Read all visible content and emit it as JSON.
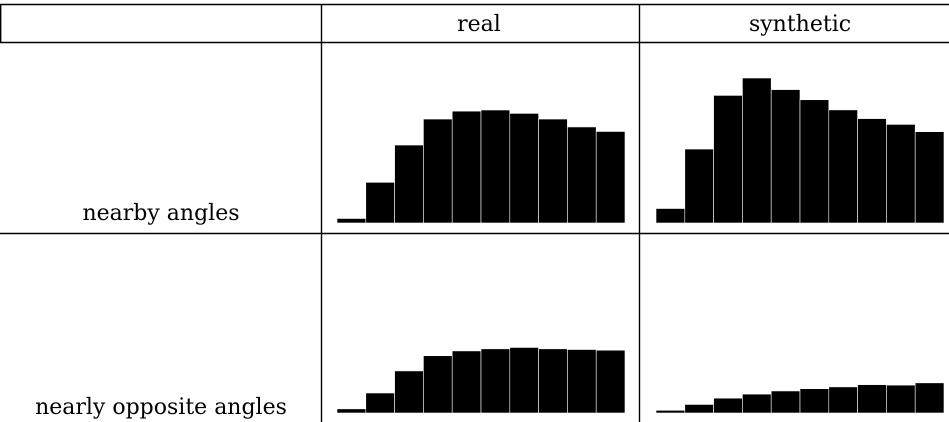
{
  "table": {
    "header": {
      "col1": "real",
      "col2": "synthetic"
    },
    "rows": [
      {
        "label": "nearby angles"
      },
      {
        "label": "nearly opposite angles"
      }
    ]
  },
  "chart_data": [
    {
      "type": "bar",
      "row": "nearby angles",
      "column": "real",
      "values": [
        0.04,
        0.36,
        0.69,
        0.92,
        0.99,
        1.0,
        0.97,
        0.92,
        0.85,
        0.81
      ]
    },
    {
      "type": "bar",
      "row": "nearby angles",
      "column": "synthetic",
      "values": [
        0.1,
        0.51,
        0.88,
        1.0,
        0.92,
        0.85,
        0.78,
        0.72,
        0.68,
        0.63
      ]
    },
    {
      "type": "bar",
      "row": "nearly opposite angles",
      "column": "real",
      "values": [
        0.06,
        0.29,
        0.61,
        0.83,
        0.9,
        0.93,
        0.95,
        0.93,
        0.92,
        0.91
      ]
    },
    {
      "type": "bar",
      "row": "nearly opposite angles",
      "column": "synthetic",
      "values": [
        0.06,
        0.19,
        0.33,
        0.42,
        0.49,
        0.54,
        0.58,
        0.63,
        0.62,
        0.67
      ]
    }
  ],
  "colors": {
    "bar_fill": "#000000",
    "bar_separator": "#ffffff",
    "grid_line": "#000000"
  }
}
